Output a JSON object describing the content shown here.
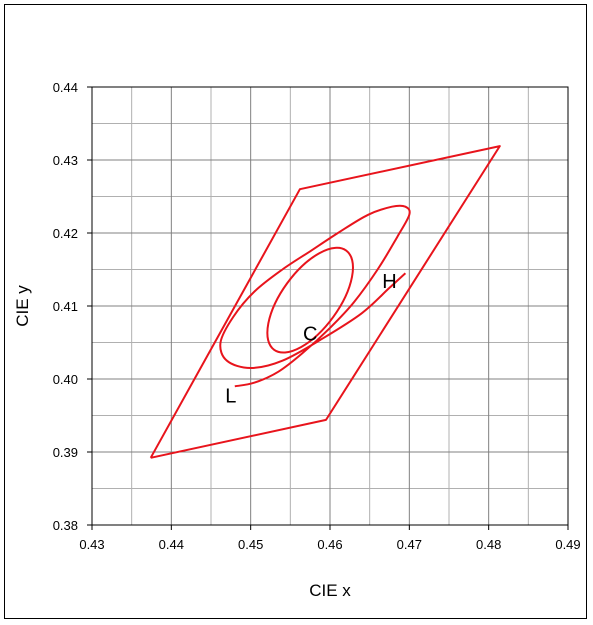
{
  "chart_data": {
    "type": "line",
    "title": "",
    "xlabel": "CIE x",
    "ylabel": "CIE y",
    "xlim": [
      0.43,
      0.49
    ],
    "ylim": [
      0.38,
      0.44
    ],
    "x_ticks": [
      "0.43",
      "0.44",
      "0.45",
      "0.46",
      "0.47",
      "0.48",
      "0.49"
    ],
    "y_ticks": [
      "0.38",
      "0.39",
      "0.40",
      "0.41",
      "0.42",
      "0.43",
      "0.44"
    ],
    "minor_grid_step": 0.005,
    "grid": true,
    "legend": "none",
    "line_color": "#e8141c",
    "series": [
      {
        "shape": "parallelogram",
        "points": [
          [
            0.4374,
            0.3892
          ],
          [
            0.4595,
            0.3944
          ],
          [
            0.4814,
            0.4319
          ],
          [
            0.4562,
            0.426
          ],
          [
            0.4374,
            0.3892
          ]
        ]
      },
      {
        "shape": "ellipse",
        "label": "C",
        "center": [
          0.4575,
          0.4108
        ],
        "semi_axes": [
          0.0036,
          0.0084
        ],
        "rotation_deg": 36
      },
      {
        "shape": "spiral",
        "points": [
          [
            0.448,
            0.399
          ],
          [
            0.4505,
            0.3995
          ],
          [
            0.4535,
            0.401
          ],
          [
            0.4565,
            0.4035
          ],
          [
            0.46,
            0.407
          ],
          [
            0.463,
            0.4105
          ],
          [
            0.466,
            0.415
          ],
          [
            0.4685,
            0.4195
          ],
          [
            0.47,
            0.4225
          ],
          [
            0.4695,
            0.4236
          ],
          [
            0.4678,
            0.4236
          ],
          [
            0.4648,
            0.4225
          ],
          [
            0.461,
            0.42
          ],
          [
            0.4575,
            0.4175
          ],
          [
            0.454,
            0.415
          ],
          [
            0.4505,
            0.412
          ],
          [
            0.4478,
            0.4085
          ],
          [
            0.4462,
            0.405
          ],
          [
            0.447,
            0.4025
          ],
          [
            0.45,
            0.4015
          ],
          [
            0.454,
            0.4025
          ],
          [
            0.459,
            0.4055
          ],
          [
            0.464,
            0.409
          ],
          [
            0.4675,
            0.4125
          ],
          [
            0.4695,
            0.4145
          ]
        ]
      }
    ],
    "annotations": [
      {
        "text": "H",
        "x": 0.4675,
        "y": 0.4132
      },
      {
        "text": "C",
        "x": 0.4575,
        "y": 0.406
      },
      {
        "text": "L",
        "x": 0.4475,
        "y": 0.3975
      }
    ]
  }
}
